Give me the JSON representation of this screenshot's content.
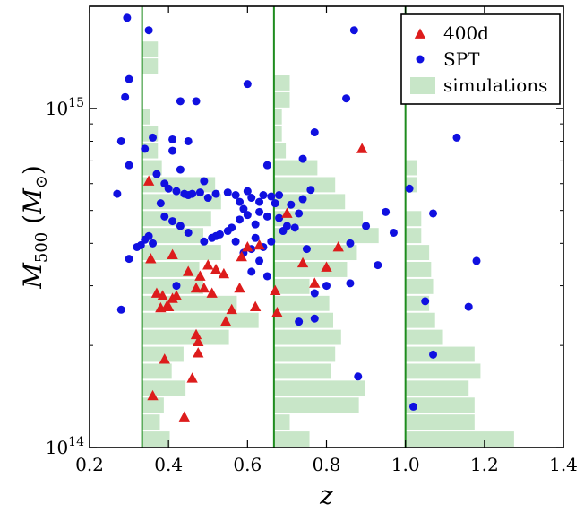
{
  "chart_data": {
    "type": "scatter",
    "title": "",
    "xlabel": "z",
    "ylabel": {
      "base": "M",
      "sub": "500",
      "unit_open": " (",
      "unit": "M",
      "unit_sub": "⊙",
      "unit_close": ")"
    },
    "xlim": [
      0.2,
      1.4
    ],
    "ylim": [
      100000000000000.0,
      2000000000000000.0
    ],
    "yscale": "log",
    "xticks": [
      0.2,
      0.4,
      0.6,
      0.8,
      1.0,
      1.2,
      1.4
    ],
    "xtick_labels": [
      "0.2",
      "0.4",
      "0.6",
      "0.8",
      "1.0",
      "1.2",
      "1.4"
    ],
    "yticks_major": [
      {
        "value": 100000000000000.0,
        "label_base": "10",
        "label_exp": "14"
      },
      {
        "value": 1000000000000000.0,
        "label_base": "10",
        "label_exp": "15"
      }
    ],
    "grid": false,
    "legend_position": "top-right",
    "colors": {
      "400d": "#dd1c1c",
      "SPT": "#1010e0",
      "simulations": "#c8e6c8",
      "bin_lines": "#1e8c1e"
    },
    "bin_edges_z": [
      0.333,
      0.667,
      1.0
    ],
    "series": [
      {
        "name": "400d",
        "marker": "triangle",
        "points": [
          [
            0.35,
            610000000000000.0
          ],
          [
            0.355,
            360000000000000.0
          ],
          [
            0.36,
            142000000000000.0
          ],
          [
            0.37,
            285000000000000.0
          ],
          [
            0.38,
            258000000000000.0
          ],
          [
            0.385,
            280000000000000.0
          ],
          [
            0.39,
            182000000000000.0
          ],
          [
            0.395,
            260000000000000.0
          ],
          [
            0.4,
            260000000000000.0
          ],
          [
            0.41,
            275000000000000.0
          ],
          [
            0.41,
            370000000000000.0
          ],
          [
            0.42,
            280000000000000.0
          ],
          [
            0.44,
            123000000000000.0
          ],
          [
            0.45,
            330000000000000.0
          ],
          [
            0.46,
            160000000000000.0
          ],
          [
            0.47,
            295000000000000.0
          ],
          [
            0.47,
            215000000000000.0
          ],
          [
            0.475,
            205000000000000.0
          ],
          [
            0.475,
            190000000000000.0
          ],
          [
            0.48,
            320000000000000.0
          ],
          [
            0.49,
            295000000000000.0
          ],
          [
            0.5,
            345000000000000.0
          ],
          [
            0.51,
            285000000000000.0
          ],
          [
            0.52,
            335000000000000.0
          ],
          [
            0.54,
            325000000000000.0
          ],
          [
            0.545,
            235000000000000.0
          ],
          [
            0.56,
            255000000000000.0
          ],
          [
            0.58,
            295000000000000.0
          ],
          [
            0.585,
            365000000000000.0
          ],
          [
            0.6,
            390000000000000.0
          ],
          [
            0.62,
            260000000000000.0
          ],
          [
            0.63,
            395000000000000.0
          ],
          [
            0.67,
            290000000000000.0
          ],
          [
            0.675,
            250000000000000.0
          ],
          [
            0.7,
            490000000000000.0
          ],
          [
            0.74,
            350000000000000.0
          ],
          [
            0.77,
            305000000000000.0
          ],
          [
            0.8,
            340000000000000.0
          ],
          [
            0.83,
            390000000000000.0
          ],
          [
            0.89,
            760000000000000.0
          ]
        ]
      },
      {
        "name": "SPT",
        "marker": "circle",
        "points": [
          [
            0.295,
            1850000000000000.0
          ],
          [
            0.35,
            1700000000000000.0
          ],
          [
            0.3,
            1220000000000000.0
          ],
          [
            0.29,
            1080000000000000.0
          ],
          [
            0.28,
            800000000000000.0
          ],
          [
            0.27,
            560000000000000.0
          ],
          [
            0.3,
            680000000000000.0
          ],
          [
            0.36,
            820000000000000.0
          ],
          [
            0.34,
            760000000000000.0
          ],
          [
            0.43,
            1050000000000000.0
          ],
          [
            0.47,
            1050000000000000.0
          ],
          [
            0.41,
            810000000000000.0
          ],
          [
            0.45,
            800000000000000.0
          ],
          [
            0.6,
            1180000000000000.0
          ],
          [
            0.87,
            1700000000000000.0
          ],
          [
            0.85,
            1070000000000000.0
          ],
          [
            0.77,
            850000000000000.0
          ],
          [
            1.13,
            820000000000000.0
          ],
          [
            0.65,
            680000000000000.0
          ],
          [
            0.74,
            710000000000000.0
          ],
          [
            0.41,
            750000000000000.0
          ],
          [
            0.43,
            660000000000000.0
          ],
          [
            0.37,
            640000000000000.0
          ],
          [
            0.39,
            600000000000000.0
          ],
          [
            0.4,
            580000000000000.0
          ],
          [
            0.42,
            570000000000000.0
          ],
          [
            0.44,
            560000000000000.0
          ],
          [
            0.45,
            555000000000000.0
          ],
          [
            0.46,
            560000000000000.0
          ],
          [
            0.48,
            565000000000000.0
          ],
          [
            0.49,
            610000000000000.0
          ],
          [
            0.5,
            545000000000000.0
          ],
          [
            0.52,
            560000000000000.0
          ],
          [
            0.55,
            565000000000000.0
          ],
          [
            0.57,
            555000000000000.0
          ],
          [
            0.58,
            530000000000000.0
          ],
          [
            0.6,
            570000000000000.0
          ],
          [
            0.61,
            545000000000000.0
          ],
          [
            0.63,
            530000000000000.0
          ],
          [
            0.64,
            555000000000000.0
          ],
          [
            0.66,
            550000000000000.0
          ],
          [
            0.67,
            525000000000000.0
          ],
          [
            0.68,
            555000000000000.0
          ],
          [
            0.71,
            520000000000000.0
          ],
          [
            0.74,
            540000000000000.0
          ],
          [
            0.76,
            575000000000000.0
          ],
          [
            0.38,
            525000000000000.0
          ],
          [
            0.39,
            480000000000000.0
          ],
          [
            0.41,
            465000000000000.0
          ],
          [
            0.43,
            450000000000000.0
          ],
          [
            0.45,
            430000000000000.0
          ],
          [
            0.52,
            420000000000000.0
          ],
          [
            0.56,
            445000000000000.0
          ],
          [
            0.58,
            470000000000000.0
          ],
          [
            0.59,
            505000000000000.0
          ],
          [
            0.6,
            485000000000000.0
          ],
          [
            0.62,
            455000000000000.0
          ],
          [
            0.63,
            495000000000000.0
          ],
          [
            0.65,
            480000000000000.0
          ],
          [
            0.68,
            475000000000000.0
          ],
          [
            0.7,
            450000000000000.0
          ],
          [
            0.73,
            490000000000000.0
          ],
          [
            0.35,
            420000000000000.0
          ],
          [
            0.34,
            410000000000000.0
          ],
          [
            0.36,
            400000000000000.0
          ],
          [
            0.33,
            395000000000000.0
          ],
          [
            0.32,
            390000000000000.0
          ],
          [
            0.3,
            360000000000000.0
          ],
          [
            0.49,
            405000000000000.0
          ],
          [
            0.51,
            415000000000000.0
          ],
          [
            0.53,
            425000000000000.0
          ],
          [
            0.55,
            435000000000000.0
          ],
          [
            0.57,
            405000000000000.0
          ],
          [
            0.59,
            375000000000000.0
          ],
          [
            0.61,
            385000000000000.0
          ],
          [
            0.62,
            415000000000000.0
          ],
          [
            0.64,
            390000000000000.0
          ],
          [
            0.66,
            405000000000000.0
          ],
          [
            0.69,
            435000000000000.0
          ],
          [
            0.72,
            445000000000000.0
          ],
          [
            0.75,
            385000000000000.0
          ],
          [
            0.86,
            400000000000000.0
          ],
          [
            0.9,
            450000000000000.0
          ],
          [
            0.95,
            495000000000000.0
          ],
          [
            1.01,
            580000000000000.0
          ],
          [
            0.97,
            430000000000000.0
          ],
          [
            1.07,
            490000000000000.0
          ],
          [
            0.93,
            345000000000000.0
          ],
          [
            0.63,
            355000000000000.0
          ],
          [
            0.61,
            330000000000000.0
          ],
          [
            0.65,
            320000000000000.0
          ],
          [
            0.42,
            300000000000000.0
          ],
          [
            0.28,
            255000000000000.0
          ],
          [
            0.77,
            285000000000000.0
          ],
          [
            0.8,
            300000000000000.0
          ],
          [
            0.73,
            235000000000000.0
          ],
          [
            0.77,
            240000000000000.0
          ],
          [
            0.86,
            305000000000000.0
          ],
          [
            1.05,
            270000000000000.0
          ],
          [
            1.18,
            355000000000000.0
          ],
          [
            1.16,
            260000000000000.0
          ],
          [
            0.88,
            162000000000000.0
          ],
          [
            1.07,
            188000000000000.0
          ],
          [
            1.02,
            132000000000000.0
          ]
        ]
      },
      {
        "name": "simulations",
        "type": "histogram-horizontal",
        "log_bin_edges": [
          14.0,
          14.05,
          14.1,
          14.15,
          14.2,
          14.25,
          14.3,
          14.35,
          14.4,
          14.45,
          14.5,
          14.55,
          14.6,
          14.65,
          14.7,
          14.75,
          14.8,
          14.85,
          14.9,
          14.95,
          15.0,
          15.05,
          15.1,
          15.15,
          15.2
        ],
        "bins": [
          {
            "z_start": 0.333,
            "widths": [
              0.07,
              0.045,
              0.055,
              0.11,
              0.075,
              0.105,
              0.22,
              0.295,
              0.24,
              0.155,
              0.145,
              0.2,
              0.155,
              0.175,
              0.2,
              0.185,
              0.05,
              0.04,
              0.04,
              0.02,
              0.0,
              0.0,
              0.04,
              0.04
            ]
          },
          {
            "z_start": 0.667,
            "widths": [
              0.09,
              0.04,
              0.215,
              0.23,
              0.145,
              0.155,
              0.17,
              0.15,
              0.14,
              0.09,
              0.185,
              0.21,
              0.265,
              0.225,
              0.18,
              0.155,
              0.11,
              0.03,
              0.02,
              0.02,
              0.04,
              0.04,
              0.0,
              0.0
            ]
          },
          {
            "z_start": 1.0,
            "widths": [
              0.275,
              0.175,
              0.175,
              0.16,
              0.19,
              0.175,
              0.095,
              0.075,
              0.06,
              0.07,
              0.065,
              0.06,
              0.04,
              0.04,
              0.0,
              0.03,
              0.03,
              0.0,
              0.0,
              0.0,
              0.0,
              0.0,
              0.0,
              0.0
            ]
          }
        ]
      }
    ]
  }
}
